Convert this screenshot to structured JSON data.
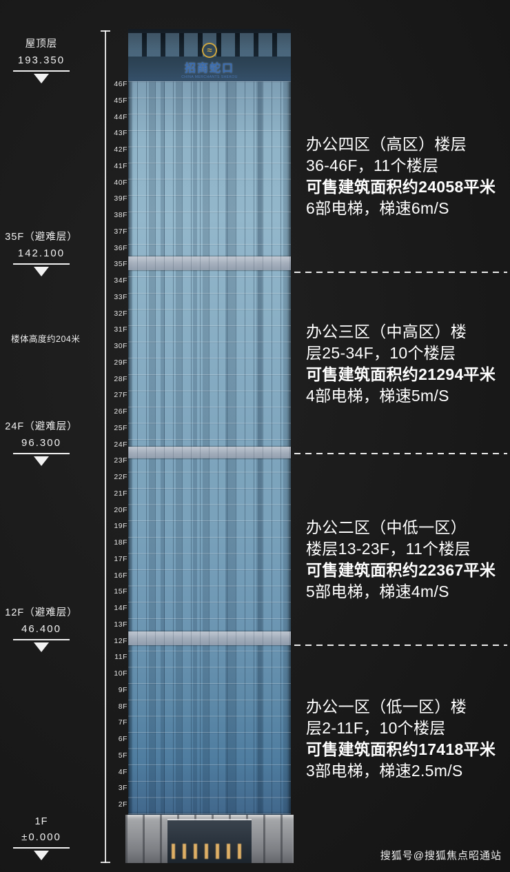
{
  "page": {
    "watermark": "搜狐号@搜狐焦点昭通站",
    "colors": {
      "background": "#1a1a1a",
      "logo_gold": "#cfa63e",
      "logo_blue": "#3a6cb0",
      "text": "#ffffff"
    }
  },
  "building": {
    "logo_mark": "≈",
    "logo_text": "招商蛇口",
    "logo_subtext": "CHINA MERCHANTS SHEKOU"
  },
  "height_note": "楼体高度约204米",
  "left_markers": [
    {
      "id": "roof",
      "label": "屋顶层",
      "value": "193.350"
    },
    {
      "id": "35f",
      "label": "35F（避难层）",
      "value": "142.100"
    },
    {
      "id": "24f",
      "label": "24F（避难层）",
      "value": "96.300"
    },
    {
      "id": "12f",
      "label": "12F（避难层）",
      "value": "46.400"
    },
    {
      "id": "1f",
      "label": "1F",
      "value": "±0.000"
    }
  ],
  "floors": [
    "46F",
    "45F",
    "44F",
    "43F",
    "42F",
    "41F",
    "40F",
    "39F",
    "38F",
    "37F",
    "36F",
    "35F",
    "34F",
    "33F",
    "32F",
    "31F",
    "30F",
    "29F",
    "28F",
    "27F",
    "26F",
    "25F",
    "24F",
    "23F",
    "22F",
    "21F",
    "20F",
    "19F",
    "18F",
    "17F",
    "16F",
    "15F",
    "14F",
    "13F",
    "12F",
    "11F",
    "10F",
    "9F",
    "8F",
    "7F",
    "6F",
    "5F",
    "4F",
    "3F",
    "2F"
  ],
  "zones": [
    {
      "lines": [
        "办公四区（高区）楼层",
        "36-46F，11个楼层",
        "可售建筑面积约24058平米",
        "6部电梯，梯速6m/S"
      ]
    },
    {
      "lines": [
        "办公三区（中高区）楼",
        "层25-34F，10个楼层",
        "可售建筑面积约21294平米",
        "4部电梯，梯速5m/S"
      ]
    },
    {
      "lines": [
        "办公二区（中低一区）",
        "楼层13-23F，11个楼层",
        "可售建筑面积约22367平米",
        "5部电梯，梯速4m/S"
      ]
    },
    {
      "lines": [
        "办公一区（低一区）楼",
        "层2-11F，10个楼层",
        "可售建筑面积约17418平米",
        "3部电梯，梯速2.5m/S"
      ]
    }
  ]
}
